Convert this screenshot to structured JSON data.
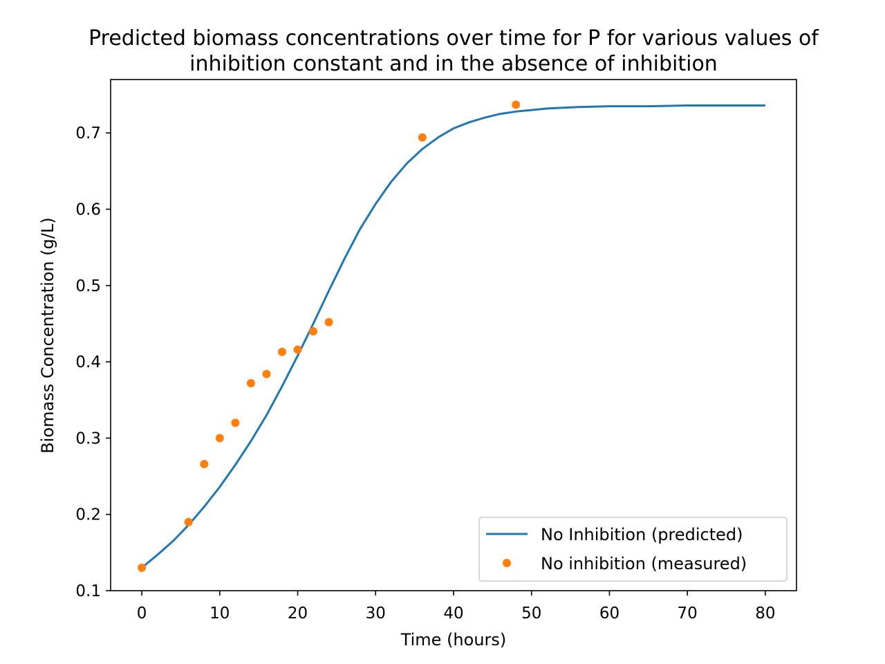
{
  "chart_data": {
    "type": "line",
    "title_lines": [
      "Predicted biomass concentrations over time for P for various values of",
      "inhibition constant and in the absence of inhibition"
    ],
    "xlabel": "Time (hours)",
    "ylabel": "Biomass Concentration (g/L)",
    "xlim": [
      -4,
      84
    ],
    "ylim": [
      0.1,
      0.77
    ],
    "xticks": [
      0,
      10,
      20,
      30,
      40,
      50,
      60,
      70,
      80
    ],
    "xtick_labels": [
      "0",
      "10",
      "20",
      "30",
      "40",
      "50",
      "60",
      "70",
      "80"
    ],
    "yticks": [
      0.1,
      0.2,
      0.3,
      0.4,
      0.5,
      0.6,
      0.7
    ],
    "ytick_labels": [
      "0.1",
      "0.2",
      "0.3",
      "0.4",
      "0.5",
      "0.6",
      "0.7"
    ],
    "grid": false,
    "legend_position": "lower-right",
    "series": [
      {
        "name": "No Inhibition (predicted)",
        "kind": "line",
        "color": "#1f77b4",
        "x": [
          0,
          2,
          4,
          6,
          8,
          10,
          12,
          14,
          16,
          18,
          20,
          22,
          24,
          26,
          28,
          30,
          32,
          34,
          36,
          38,
          40,
          42,
          44,
          46,
          48,
          50,
          52,
          56,
          60,
          65,
          70,
          75,
          80
        ],
        "y": [
          0.13,
          0.147,
          0.165,
          0.186,
          0.21,
          0.236,
          0.265,
          0.296,
          0.33,
          0.368,
          0.408,
          0.45,
          0.493,
          0.535,
          0.574,
          0.607,
          0.636,
          0.66,
          0.679,
          0.694,
          0.706,
          0.714,
          0.72,
          0.725,
          0.728,
          0.73,
          0.732,
          0.734,
          0.735,
          0.735,
          0.736,
          0.736,
          0.736
        ]
      },
      {
        "name": "No inhibition (measured)",
        "kind": "scatter",
        "color": "#ff7f0e",
        "x": [
          0,
          6,
          8,
          10,
          12,
          14,
          16,
          18,
          20,
          22,
          24,
          36,
          48
        ],
        "y": [
          0.13,
          0.19,
          0.266,
          0.3,
          0.32,
          0.372,
          0.384,
          0.413,
          0.416,
          0.44,
          0.452,
          0.694,
          0.737
        ]
      }
    ]
  }
}
